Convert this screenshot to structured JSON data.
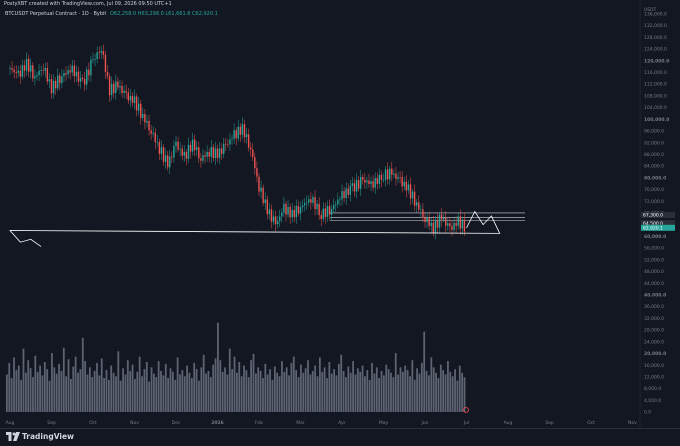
{
  "header": {
    "caption": "PostyXBT created with TradingView.com, Jul 09, 2026 09:50 UTC+1",
    "symbol": "BTCUSDT Perpetual Contract · 1D · Bybit",
    "ohlc": "O62,258.0  H63,298.0  L61,661.8  C62,920.1",
    "currency": "USDT"
  },
  "footer": {
    "brand": "TradingView"
  },
  "colors": {
    "background": "#131722",
    "candle_up": "#26a69a",
    "candle_down": "#ef5350",
    "volume": "#6b7280",
    "level_lines": "#d1d4dc",
    "projection": "#ffffff"
  },
  "chart_data": {
    "type": "candlestick",
    "y_axis_ticks": [
      "136,000.0",
      "132,000.0",
      "128,000.0",
      "124,000.0",
      "120,000.0",
      "116,000.0",
      "112,000.0",
      "108,000.0",
      "104,000.0",
      "100,000.0",
      "96,000.0",
      "92,000.0",
      "88,000.0",
      "84,000.0",
      "80,000.0",
      "76,000.0",
      "72,000.0",
      "68,000.0",
      "64,000.0",
      "60,000.0",
      "56,000.0",
      "52,000.0",
      "48,000.0",
      "44,000.0",
      "40,000.0",
      "36,000.0",
      "32,000.0",
      "28,000.0",
      "24,000.0",
      "20,000.0",
      "16,000.0",
      "12,000.0",
      "8,000.0",
      "4,000.0",
      "0.0"
    ],
    "ylim": [
      0,
      138000
    ],
    "x_axis_ticks": [
      "Aug",
      "Sep",
      "Oct",
      "Nov",
      "Dec",
      "2026",
      "Feb",
      "Mar",
      "Apr",
      "May",
      "Jun",
      "Jul",
      "Aug",
      "Sep",
      "Oct",
      "Nov"
    ],
    "price_path": [
      [
        "Aug",
        117500
      ],
      [
        "Aug",
        115000
      ],
      [
        "Aug",
        119000
      ],
      [
        "Aug",
        114500
      ],
      [
        "Aug",
        118000
      ],
      [
        "Sep",
        110500
      ],
      [
        "Sep",
        115000
      ],
      [
        "Sep",
        117000
      ],
      [
        "Sep",
        112000
      ],
      [
        "Oct",
        120000
      ],
      [
        "Oct",
        124500
      ],
      [
        "Oct",
        110000
      ],
      [
        "Oct",
        111500
      ],
      [
        "Oct",
        108000
      ],
      [
        "Nov",
        106000
      ],
      [
        "Nov",
        101000
      ],
      [
        "Nov",
        96000
      ],
      [
        "Nov",
        90000
      ],
      [
        "Nov",
        84500
      ],
      [
        "Dec",
        91500
      ],
      [
        "Dec",
        87000
      ],
      [
        "Dec",
        92000
      ],
      [
        "Dec",
        86500
      ],
      [
        "Dec",
        89000
      ],
      [
        "2026",
        88000
      ],
      [
        "2026",
        91000
      ],
      [
        "2026",
        94500
      ],
      [
        "2026",
        97000
      ],
      [
        "2026",
        90000
      ],
      [
        "Feb",
        77000
      ],
      [
        "Feb",
        69000
      ],
      [
        "Feb",
        64000
      ],
      [
        "Feb",
        69500
      ],
      [
        "Feb",
        67500
      ],
      [
        "Mar",
        70000
      ],
      [
        "Mar",
        73000
      ],
      [
        "Mar",
        67500
      ],
      [
        "Mar",
        69500
      ],
      [
        "Apr",
        74000
      ],
      [
        "Apr",
        76500
      ],
      [
        "Apr",
        79000
      ],
      [
        "Apr",
        78000
      ],
      [
        "May",
        81000
      ],
      [
        "May",
        81500
      ],
      [
        "May",
        79000
      ],
      [
        "May",
        76000
      ],
      [
        "May",
        71000
      ],
      [
        "Jun",
        66000
      ],
      [
        "Jun",
        63000
      ],
      [
        "Jun",
        66500
      ],
      [
        "Jun",
        62500
      ],
      [
        "Jun",
        65000
      ],
      [
        "Jul",
        62900
      ]
    ],
    "projection_path": [
      [
        "Jul",
        62900
      ],
      [
        "Jul",
        68500
      ],
      [
        "Jul",
        64000
      ],
      [
        "Jul",
        67000
      ],
      [
        "Jul",
        61000
      ],
      [
        "Aug",
        62000
      ],
      [
        "Aug",
        58000
      ],
      [
        "Aug",
        59000
      ],
      [
        "Aug",
        56500
      ]
    ],
    "levels": [
      68000,
      66500,
      65500
    ],
    "price_labels": [
      "67,300.0",
      "64,500.0",
      "63,000.0",
      "62,920.1"
    ],
    "current_price_label": "62,920.1",
    "key_level_labels": [
      "120,000.0",
      "100,000.0",
      "80,000.0",
      "60,000.0",
      "40,000.0",
      "20,000.0"
    ],
    "volume_scale": [
      0,
      52000
    ],
    "volume_relative": [
      0.42,
      0.55,
      0.38,
      0.61,
      0.47,
      0.52,
      0.36,
      0.71,
      0.44,
      0.58,
      0.49,
      0.39,
      0.63,
      0.45,
      0.52,
      0.41,
      0.56,
      0.48,
      0.35,
      0.66,
      0.5,
      0.43,
      0.54,
      0.46,
      0.72,
      0.4,
      0.59,
      0.37,
      0.51,
      0.62,
      0.44,
      0.48,
      0.83,
      0.57,
      0.42,
      0.5,
      0.39,
      0.46,
      0.55,
      0.41,
      0.6,
      0.38,
      0.47,
      0.36,
      0.52,
      0.44,
      0.4,
      0.68,
      0.35,
      0.49,
      0.42,
      0.58,
      0.46,
      0.53,
      0.37,
      0.45,
      0.62,
      0.4,
      0.48,
      0.56,
      0.34,
      0.5,
      0.43,
      0.39,
      0.57,
      0.46,
      0.41,
      0.54,
      0.38,
      0.49,
      0.45,
      0.36,
      0.61,
      0.42,
      0.47,
      0.4,
      0.52,
      0.44,
      0.38,
      0.55,
      0.48,
      0.35,
      0.5,
      0.64,
      0.43,
      0.46,
      0.39,
      0.53,
      0.6,
      1.0,
      0.58,
      0.45,
      0.5,
      0.42,
      0.71,
      0.48,
      0.62,
      0.44,
      0.56,
      0.4,
      0.52,
      0.47,
      0.39,
      0.58,
      0.65,
      0.43,
      0.5,
      0.46,
      0.38,
      0.54,
      0.42,
      0.48,
      0.36,
      0.51,
      0.44,
      0.4,
      0.57,
      0.45,
      0.5,
      0.41,
      0.55,
      0.62,
      0.47,
      0.39,
      0.53,
      0.44,
      0.49,
      0.58,
      0.42,
      0.46,
      0.52,
      0.4,
      0.61,
      0.45,
      0.5,
      0.38,
      0.56,
      0.43,
      0.48,
      0.41,
      0.54,
      0.64,
      0.46,
      0.39,
      0.51,
      0.44,
      0.57,
      0.42,
      0.49,
      0.45,
      0.52,
      0.4,
      0.47,
      0.36,
      0.55,
      0.43,
      0.5,
      0.38,
      0.46,
      0.41,
      0.53,
      0.48,
      0.44,
      0.39,
      0.66,
      0.42,
      0.5,
      0.45,
      0.52,
      0.47,
      0.4,
      0.58,
      0.36,
      0.49,
      0.43,
      0.55,
      0.9,
      0.46,
      0.41,
      0.61,
      0.5,
      0.44,
      0.38,
      0.53,
      0.47,
      0.42,
      0.57,
      0.45,
      0.4,
      0.48,
      0.35,
      0.52,
      0.44,
      0.39
    ]
  }
}
